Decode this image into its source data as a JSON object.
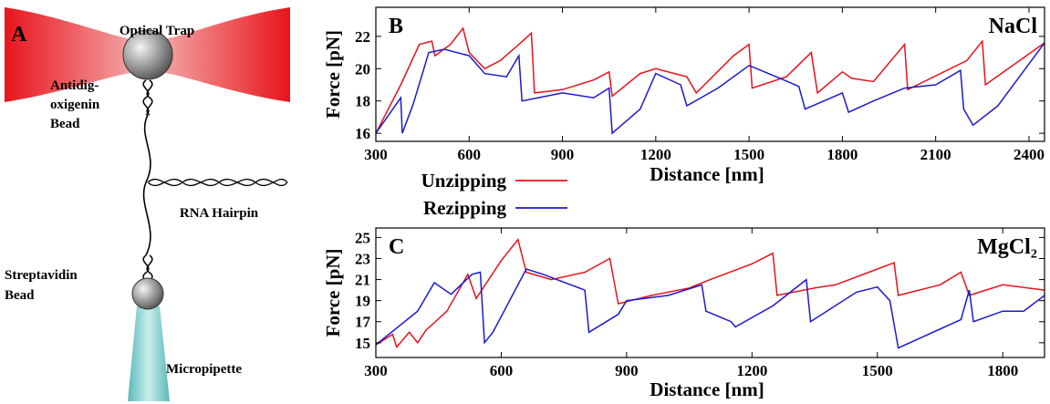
{
  "diagram": {
    "panel_label": "A",
    "labels": {
      "optical_trap": "Optical Trap",
      "antidig_bead": [
        "Antidig-",
        "oxigenin",
        "Bead"
      ],
      "rna_hairpin": "RNA Hairpin",
      "strep_bead": [
        "Streptavidin",
        "Bead"
      ],
      "micropipette": "Micropipette"
    }
  },
  "chart_data": [
    {
      "type": "line",
      "panel_label": "B",
      "annotation": "NaCl",
      "x_label": "Distance [nm]",
      "y_label": "Force [pN]",
      "xlim": [
        300,
        2450
      ],
      "ylim": [
        15.5,
        23.8
      ],
      "xticks": [
        300,
        600,
        900,
        1200,
        1500,
        1800,
        2100,
        2400
      ],
      "yticks": [
        16,
        18,
        20,
        22
      ],
      "series": [
        {
          "name": "Unzipping",
          "color": "#e8121a",
          "x": [
            300,
            380,
            440,
            480,
            490,
            540,
            580,
            600,
            650,
            700,
            760,
            800,
            810,
            900,
            1000,
            1050,
            1060,
            1150,
            1200,
            1300,
            1330,
            1450,
            1500,
            1510,
            1620,
            1700,
            1720,
            1800,
            1830,
            1900,
            2000,
            2010,
            2200,
            2250,
            2260,
            2450
          ],
          "values": [
            16,
            19,
            21.5,
            21.7,
            20.8,
            21.5,
            22.5,
            21,
            20,
            20.5,
            21.5,
            22.2,
            18.5,
            18.7,
            19.3,
            19.8,
            18.3,
            19.7,
            20,
            19.5,
            18.5,
            20.8,
            21.5,
            18.8,
            19.5,
            21,
            18.5,
            19.8,
            19.4,
            19.2,
            21.5,
            18.7,
            20.5,
            21.7,
            19,
            21.6
          ]
        },
        {
          "name": "Rezipping",
          "color": "#1a1ad0",
          "x": [
            300,
            380,
            385,
            420,
            470,
            520,
            600,
            650,
            720,
            760,
            770,
            900,
            1000,
            1050,
            1060,
            1150,
            1200,
            1280,
            1300,
            1400,
            1500,
            1600,
            1660,
            1680,
            1800,
            1820,
            1900,
            2000,
            2100,
            2180,
            2190,
            2220,
            2300,
            2450
          ],
          "values": [
            16,
            18.2,
            16,
            17.8,
            21,
            21.2,
            20.8,
            19.7,
            19.5,
            20.8,
            18,
            18.5,
            18.2,
            18.8,
            16,
            17.5,
            19.7,
            19,
            17.7,
            18.8,
            20.2,
            19.4,
            18.9,
            17.5,
            18.5,
            17.3,
            18,
            18.8,
            19,
            19.9,
            17.5,
            16.5,
            17.7,
            21.6
          ]
        }
      ]
    },
    {
      "type": "line",
      "panel_label": "C",
      "annotation": "MgCl₂",
      "x_label": "Distance [nm]",
      "y_label": "Force [pN]",
      "xlim": [
        300,
        1900
      ],
      "ylim": [
        13.6,
        25.9
      ],
      "xticks": [
        300,
        600,
        900,
        1200,
        1500,
        1800
      ],
      "yticks": [
        15,
        17,
        19,
        21,
        23,
        25
      ],
      "series": [
        {
          "color": "#e8121a",
          "x": [
            300,
            340,
            350,
            380,
            400,
            420,
            470,
            520,
            540,
            600,
            640,
            660,
            720,
            800,
            860,
            880,
            960,
            1050,
            1100,
            1200,
            1250,
            1260,
            1350,
            1400,
            1500,
            1540,
            1550,
            1650,
            1700,
            1720,
            1800,
            1900
          ],
          "values": [
            14.8,
            15.8,
            14.6,
            16,
            15,
            16.2,
            18,
            21.5,
            19.2,
            22.8,
            24.8,
            21.7,
            21,
            21.7,
            23,
            18.7,
            19.5,
            20.2,
            21,
            22.5,
            23.5,
            19.5,
            20.2,
            20.5,
            22,
            22.6,
            19.5,
            20.5,
            21.7,
            19.5,
            20.5,
            20
          ]
        },
        {
          "color": "#1a1ad0",
          "x": [
            300,
            400,
            440,
            480,
            530,
            550,
            560,
            580,
            660,
            700,
            800,
            810,
            880,
            900,
            1000,
            1080,
            1090,
            1150,
            1160,
            1250,
            1330,
            1340,
            1450,
            1500,
            1530,
            1550,
            1700,
            1720,
            1730,
            1800,
            1850,
            1900
          ],
          "values": [
            14.8,
            18,
            20.7,
            19.6,
            21.5,
            21.7,
            15,
            16,
            22,
            21.5,
            20,
            16,
            17.7,
            19,
            19.5,
            20.5,
            18,
            17,
            16.5,
            18.5,
            21,
            17,
            19.8,
            20.3,
            19,
            14.5,
            17.2,
            20,
            17,
            18,
            18,
            19.5
          ]
        }
      ]
    }
  ]
}
